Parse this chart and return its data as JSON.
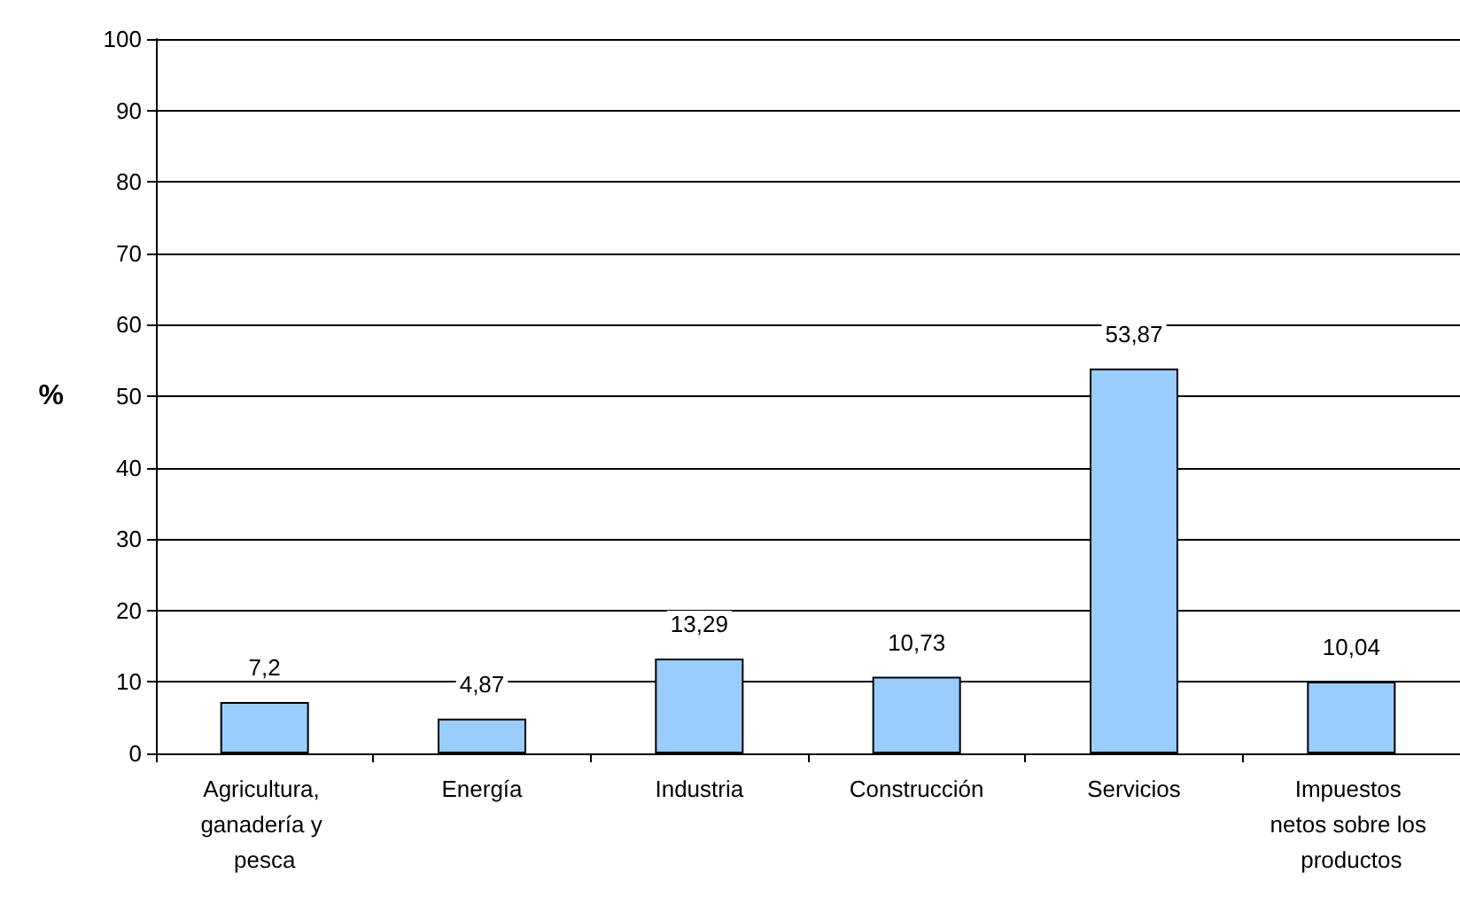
{
  "chart_data": {
    "type": "bar",
    "ylabel": "%",
    "categories": [
      "Agricultura, ganadería y pesca",
      "Energía",
      "Industria",
      "Construcción",
      "Servicios",
      "Impuestos netos sobre los productos"
    ],
    "values": [
      7.2,
      4.87,
      13.29,
      10.73,
      53.87,
      10.04
    ],
    "value_labels": [
      "7,2",
      "4,87",
      "13,29",
      "10,73",
      "53,87",
      "10,04"
    ],
    "color": "#99ccff",
    "ylim": [
      0,
      100
    ],
    "yticks": [
      0,
      10,
      20,
      30,
      40,
      50,
      60,
      70,
      80,
      90,
      100
    ],
    "grid": "y"
  }
}
